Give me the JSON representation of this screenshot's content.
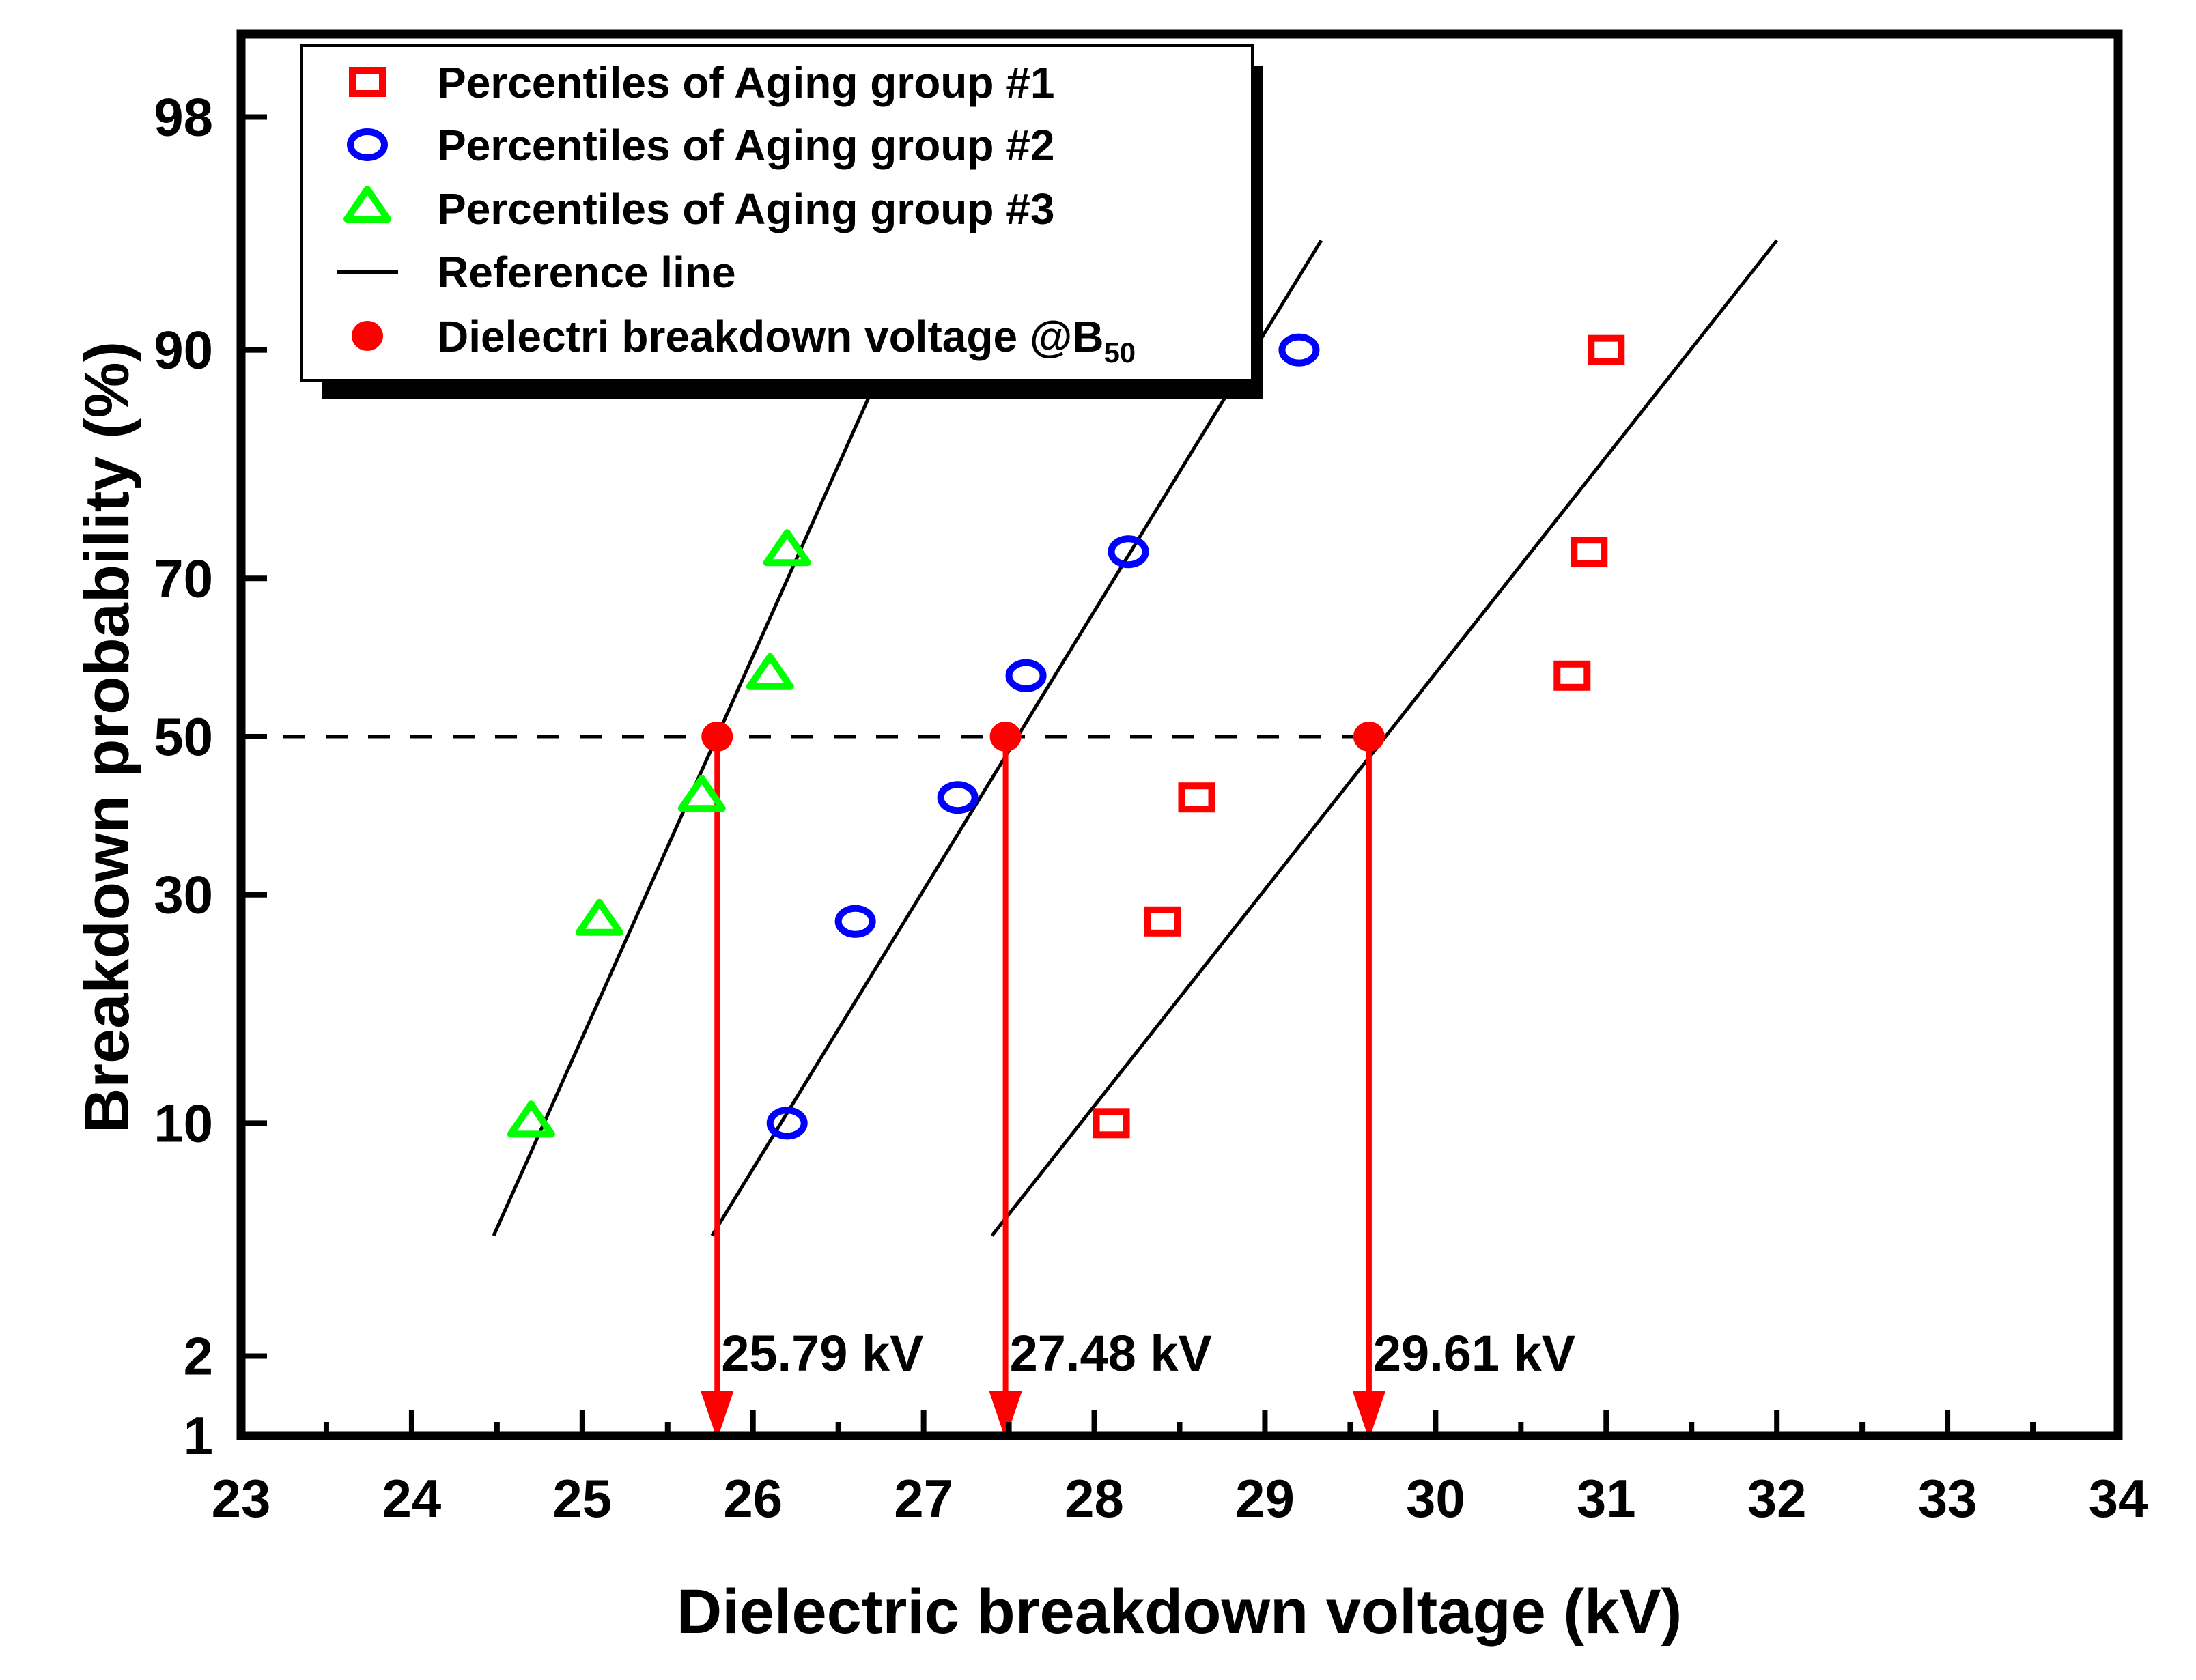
{
  "chart_data": {
    "type": "scatter",
    "title": "",
    "xlabel": "Dielectric breakdown voltage (kV)",
    "ylabel": "Breakdown probability (%)",
    "xlim": [
      23,
      34
    ],
    "ylim": [
      1,
      99
    ],
    "y_scale": "normal-probability",
    "x_ticks": [
      23,
      24,
      25,
      26,
      27,
      28,
      29,
      30,
      31,
      32,
      33,
      34
    ],
    "x_minor_step": 0.5,
    "y_ticks": [
      1,
      2,
      10,
      30,
      50,
      70,
      90,
      98
    ],
    "grid": false,
    "legend_position": "top-left",
    "series": [
      {
        "name": "Percentiles of Aging group #1",
        "marker": "open-square",
        "color": "#ff0000",
        "points": [
          [
            28.1,
            10
          ],
          [
            28.4,
            27
          ],
          [
            28.6,
            42
          ],
          [
            30.8,
            58
          ],
          [
            30.9,
            73
          ],
          [
            31.0,
            90
          ]
        ]
      },
      {
        "name": "Percentiles of Aging group #2",
        "marker": "open-circle",
        "color": "#0000ff",
        "points": [
          [
            26.2,
            10
          ],
          [
            26.6,
            27
          ],
          [
            27.2,
            42
          ],
          [
            27.6,
            58
          ],
          [
            28.2,
            73
          ],
          [
            29.2,
            90
          ]
        ]
      },
      {
        "name": "Percentiles of Aging group #3",
        "marker": "open-triangle",
        "color": "#00ff00",
        "points": [
          [
            24.7,
            10
          ],
          [
            25.1,
            27
          ],
          [
            25.7,
            42
          ],
          [
            26.1,
            58
          ],
          [
            26.2,
            73
          ]
        ]
      }
    ],
    "reference_lines": {
      "name": "Reference line",
      "color": "#000000",
      "lines": [
        {
          "group": 3,
          "from": [
            24.48,
            4.9
          ],
          "to": [
            27.09,
            95
          ]
        },
        {
          "group": 2,
          "from": [
            25.76,
            4.9
          ],
          "to": [
            29.33,
            95
          ]
        },
        {
          "group": 1,
          "from": [
            27.4,
            4.9
          ],
          "to": [
            32.0,
            95
          ]
        }
      ]
    },
    "b50": {
      "name": "Dielectri breakdown voltage @B",
      "name_subscript": "50",
      "color": "#ff0000",
      "probability": 50,
      "points": [
        {
          "x": 25.79,
          "label": "25.79 kV"
        },
        {
          "x": 27.48,
          "label": "27.48 kV"
        },
        {
          "x": 29.61,
          "label": "29.61 kV"
        }
      ]
    },
    "dashed_line": {
      "y": 50,
      "x_from": 23,
      "x_to": 29.61
    },
    "legend": [
      {
        "label": "Percentiles of Aging group #1",
        "marker": "open-square",
        "color": "#ff0000"
      },
      {
        "label": "Percentiles of Aging group #2",
        "marker": "open-circle",
        "color": "#0000ff"
      },
      {
        "label": "Percentiles of Aging group #3",
        "marker": "open-triangle",
        "color": "#00ff00"
      },
      {
        "label": "Reference line",
        "marker": "line",
        "color": "#000000"
      },
      {
        "label": "Dielectri breakdown voltage @B",
        "subscript": "50",
        "marker": "filled-circle",
        "color": "#ff0000"
      }
    ]
  }
}
